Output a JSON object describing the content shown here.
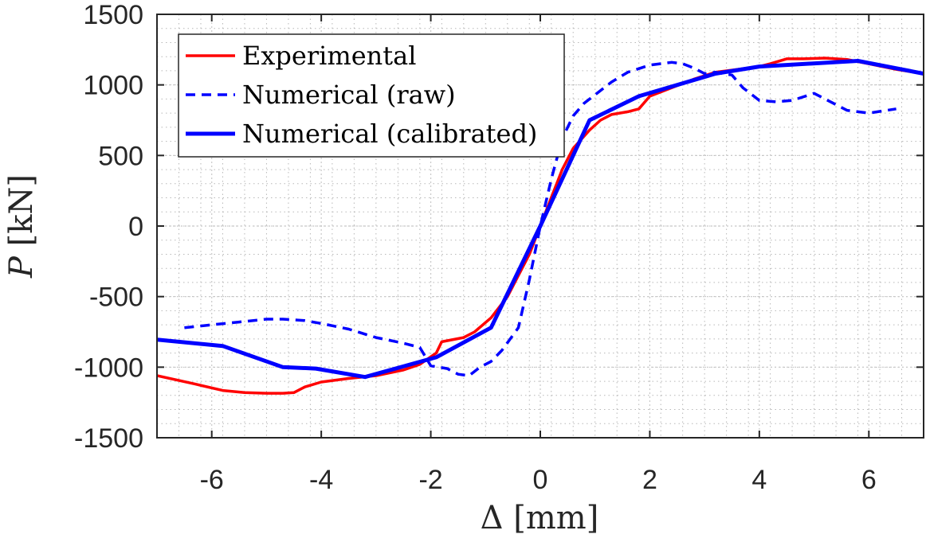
{
  "chart_data": {
    "type": "line",
    "xlabel": "Δ [mm]",
    "ylabel_var": "P",
    "ylabel_unit": " [kN]",
    "xlim": [
      -7,
      7
    ],
    "ylim": [
      -1500,
      1500
    ],
    "xticks": [
      -6,
      -4,
      -2,
      0,
      2,
      4,
      6
    ],
    "yticks": [
      -1500,
      -1000,
      -500,
      0,
      500,
      1000,
      1500
    ],
    "grid": "minor-dotted",
    "legend_position": "top-left",
    "series": [
      {
        "name": "Experimental",
        "color": "#ff0000",
        "style": "solid",
        "width": "thin",
        "x": [
          -7.0,
          -6.3,
          -5.8,
          -5.4,
          -5.0,
          -4.7,
          -4.5,
          -4.3,
          -4.0,
          -3.5,
          -3.0,
          -2.5,
          -2.2,
          -1.9,
          -1.8,
          -1.4,
          -1.2,
          -0.9,
          -0.6,
          -0.4,
          -0.2,
          0.0,
          0.2,
          0.4,
          0.6,
          0.9,
          1.1,
          1.3,
          1.6,
          1.8,
          2.0,
          2.4,
          2.8,
          3.2,
          3.6,
          4.0,
          4.2,
          4.5,
          4.8,
          5.2,
          5.6,
          6.0,
          6.5,
          7.0
        ],
        "y": [
          -1060,
          -1120,
          -1165,
          -1180,
          -1185,
          -1185,
          -1180,
          -1140,
          -1105,
          -1080,
          -1060,
          -1020,
          -980,
          -900,
          -820,
          -790,
          -750,
          -650,
          -500,
          -350,
          -200,
          0,
          200,
          400,
          550,
          680,
          750,
          790,
          810,
          830,
          920,
          980,
          1040,
          1090,
          1110,
          1130,
          1150,
          1185,
          1185,
          1190,
          1180,
          1150,
          1110,
          1080
        ]
      },
      {
        "name": "Numerical (raw)",
        "color": "#0000ff",
        "style": "dashed",
        "width": "medium",
        "x": [
          -6.5,
          -6.0,
          -5.5,
          -5.0,
          -4.7,
          -4.3,
          -4.0,
          -3.5,
          -3.0,
          -2.5,
          -2.2,
          -2.0,
          -1.7,
          -1.5,
          -1.3,
          -1.1,
          -0.9,
          -0.7,
          -0.4,
          -0.2,
          0.0,
          0.2,
          0.4,
          0.6,
          0.8,
          1.0,
          1.3,
          1.6,
          2.0,
          2.4,
          2.6,
          2.8,
          3.0,
          3.2,
          3.5,
          3.7,
          4.0,
          4.3,
          4.6,
          5.0,
          5.3,
          5.6,
          6.0,
          6.5
        ],
        "y": [
          -720,
          -700,
          -680,
          -660,
          -660,
          -670,
          -690,
          -730,
          -790,
          -830,
          -860,
          -990,
          -1010,
          -1050,
          -1060,
          -1000,
          -960,
          -880,
          -720,
          -380,
          0,
          330,
          620,
          780,
          870,
          930,
          1020,
          1090,
          1140,
          1160,
          1150,
          1120,
          1080,
          1090,
          1070,
          980,
          890,
          880,
          890,
          940,
          880,
          820,
          800,
          830
        ]
      },
      {
        "name": "Numerical (calibrated)",
        "color": "#0000ff",
        "style": "solid",
        "width": "thick",
        "x": [
          -7.0,
          -5.8,
          -4.7,
          -4.1,
          -3.2,
          -1.9,
          -0.9,
          0.0,
          0.9,
          1.8,
          3.2,
          4.0,
          5.8,
          7.0
        ],
        "y": [
          -805,
          -850,
          -1000,
          -1010,
          -1070,
          -930,
          -720,
          0,
          750,
          920,
          1080,
          1130,
          1170,
          1080
        ]
      }
    ]
  }
}
